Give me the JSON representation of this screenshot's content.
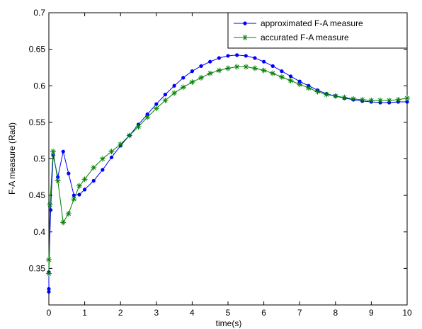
{
  "chart_data": {
    "type": "line",
    "xlabel": "time(s)",
    "ylabel": "F-A measure (Rad)",
    "xlim": [
      0,
      10
    ],
    "xticks": [
      0,
      1,
      2,
      3,
      4,
      5,
      6,
      7,
      8,
      9,
      10
    ],
    "ylim": [
      0.3,
      0.7
    ],
    "yticks": [
      0.35,
      0.4,
      0.45,
      0.5,
      0.55,
      0.6,
      0.65,
      0.7
    ],
    "legend": "upper right",
    "series": [
      {
        "name": "approximated F-A measure",
        "color": "#0000ff",
        "marker": "dot",
        "x": [
          0,
          0,
          0,
          0.05,
          0.12,
          0.25,
          0.4,
          0.55,
          0.7,
          0.85,
          1.0,
          1.25,
          1.5,
          1.75,
          2.0,
          2.25,
          2.5,
          2.75,
          3.0,
          3.25,
          3.5,
          3.75,
          4.0,
          4.25,
          4.5,
          4.75,
          5.0,
          5.25,
          5.5,
          5.75,
          6.0,
          6.25,
          6.5,
          6.75,
          7.0,
          7.25,
          7.5,
          7.75,
          8.0,
          8.25,
          8.5,
          8.75,
          9.0,
          9.25,
          9.5,
          9.75,
          10.0
        ],
        "values": [
          0.318,
          0.322,
          0.345,
          0.43,
          0.505,
          0.475,
          0.51,
          0.48,
          0.45,
          0.451,
          0.458,
          0.47,
          0.485,
          0.502,
          0.518,
          0.532,
          0.547,
          0.561,
          0.575,
          0.588,
          0.6,
          0.611,
          0.62,
          0.627,
          0.633,
          0.638,
          0.641,
          0.642,
          0.641,
          0.638,
          0.633,
          0.627,
          0.62,
          0.613,
          0.606,
          0.6,
          0.594,
          0.589,
          0.586,
          0.583,
          0.581,
          0.579,
          0.578,
          0.577,
          0.577,
          0.578,
          0.578
        ]
      },
      {
        "name": "accurated F-A measure",
        "color": "#008000",
        "marker": "star",
        "x": [
          0,
          0,
          0.03,
          0.12,
          0.25,
          0.4,
          0.55,
          0.7,
          0.85,
          1.0,
          1.25,
          1.5,
          1.75,
          2.0,
          2.25,
          2.5,
          2.75,
          3.0,
          3.25,
          3.5,
          3.75,
          4.0,
          4.25,
          4.5,
          4.75,
          5.0,
          5.25,
          5.5,
          5.75,
          6.0,
          6.25,
          6.5,
          6.75,
          7.0,
          7.25,
          7.5,
          7.75,
          8.0,
          8.25,
          8.5,
          8.75,
          9.0,
          9.25,
          9.5,
          9.75,
          10.0
        ],
        "values": [
          0.343,
          0.362,
          0.437,
          0.51,
          0.47,
          0.413,
          0.425,
          0.445,
          0.463,
          0.472,
          0.488,
          0.5,
          0.51,
          0.52,
          0.532,
          0.544,
          0.557,
          0.569,
          0.58,
          0.59,
          0.598,
          0.605,
          0.611,
          0.617,
          0.621,
          0.624,
          0.626,
          0.626,
          0.624,
          0.621,
          0.617,
          0.612,
          0.607,
          0.602,
          0.597,
          0.592,
          0.588,
          0.586,
          0.584,
          0.582,
          0.581,
          0.58,
          0.58,
          0.58,
          0.581,
          0.583
        ]
      }
    ]
  }
}
